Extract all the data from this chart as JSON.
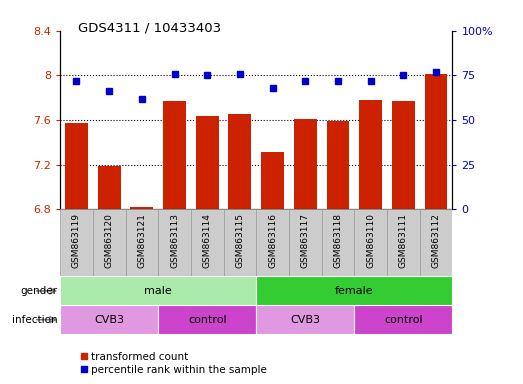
{
  "title": "GDS4311 / 10433403",
  "samples": [
    "GSM863119",
    "GSM863120",
    "GSM863121",
    "GSM863113",
    "GSM863114",
    "GSM863115",
    "GSM863116",
    "GSM863117",
    "GSM863118",
    "GSM863110",
    "GSM863111",
    "GSM863112"
  ],
  "transformed_count": [
    7.57,
    7.19,
    6.82,
    7.77,
    7.64,
    7.65,
    7.31,
    7.61,
    7.59,
    7.78,
    7.77,
    8.01
  ],
  "percentile_rank": [
    72,
    66,
    62,
    76,
    75,
    76,
    68,
    72,
    72,
    72,
    75,
    77
  ],
  "ylim_left": [
    6.8,
    8.4
  ],
  "ylim_right": [
    0,
    100
  ],
  "yticks_left": [
    6.8,
    7.2,
    7.6,
    8.0,
    8.4
  ],
  "yticks_right": [
    0,
    25,
    50,
    75,
    100
  ],
  "ytick_labels_left": [
    "6.8",
    "7.2",
    "7.6",
    "8",
    "8.4"
  ],
  "ytick_labels_right": [
    "0",
    "25",
    "50",
    "75",
    "100%"
  ],
  "hlines": [
    7.2,
    7.6,
    8.0
  ],
  "bar_color": "#cc2200",
  "dot_color": "#0000cc",
  "gender_male_color": "#aaeaaa",
  "gender_female_color": "#33cc33",
  "infection_cvb3_color": "#e099e0",
  "infection_control_color": "#cc44cc",
  "gender_groups": [
    {
      "label": "male",
      "start": 0,
      "end": 6
    },
    {
      "label": "female",
      "start": 6,
      "end": 12
    }
  ],
  "infection_groups": [
    {
      "label": "CVB3",
      "start": 0,
      "end": 3
    },
    {
      "label": "control",
      "start": 3,
      "end": 6
    },
    {
      "label": "CVB3",
      "start": 6,
      "end": 9
    },
    {
      "label": "control",
      "start": 9,
      "end": 12
    }
  ],
  "legend_bar_label": "transformed count",
  "legend_dot_label": "percentile rank within the sample",
  "bg_color": "#ffffff",
  "tick_label_color_left": "#cc2200",
  "tick_label_color_right": "#0000cc",
  "xtick_bg_color": "#cccccc",
  "xtick_border_color": "#999999"
}
